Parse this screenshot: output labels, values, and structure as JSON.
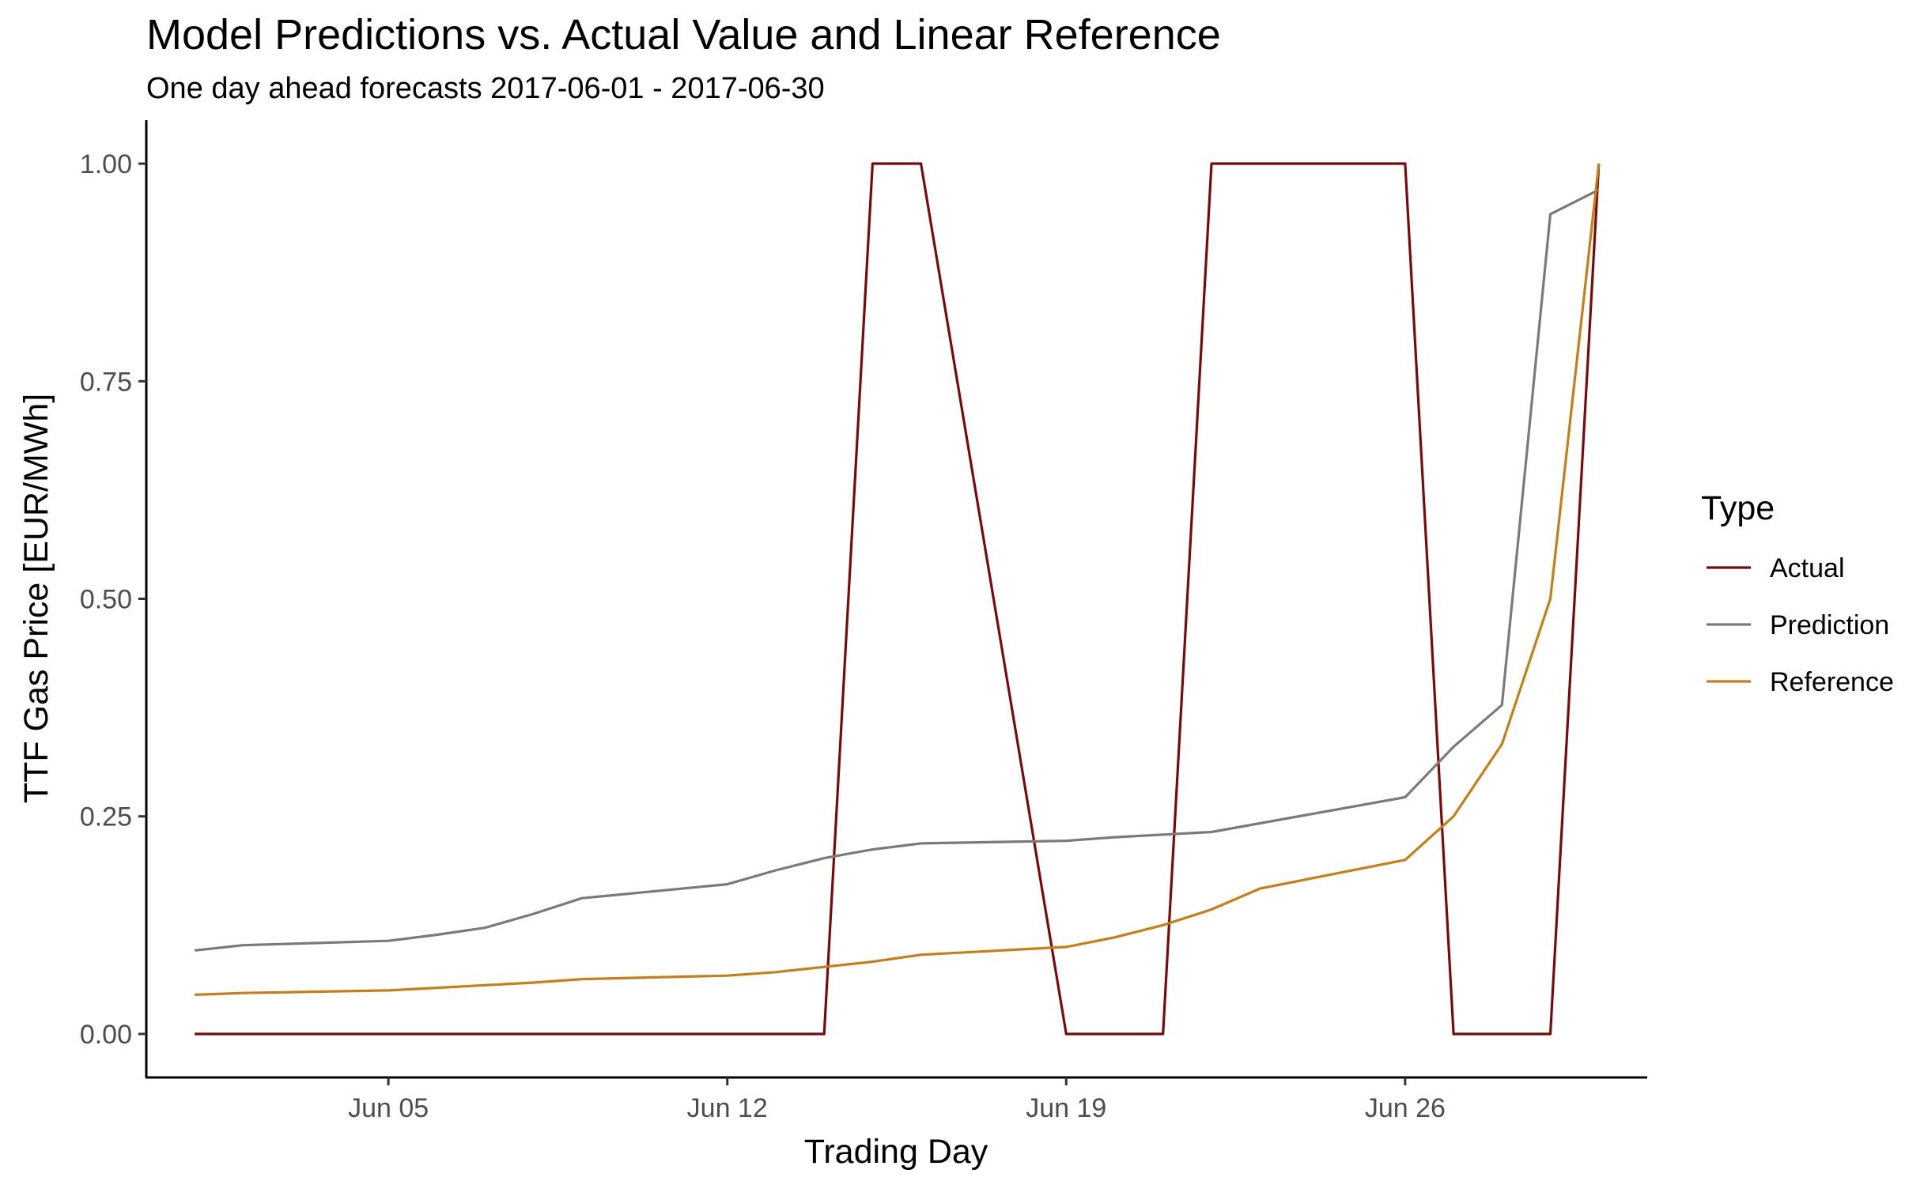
{
  "chart_data": {
    "type": "line",
    "title": "Model Predictions vs. Actual Value and Linear Reference",
    "subtitle": "One day ahead forecasts 2017-06-01 - 2017-06-30",
    "xlabel": "Trading Day",
    "ylabel": "TTF Gas Price [EUR/MWh]",
    "xlim": [
      "2017-05-31",
      "2017-07-01"
    ],
    "ylim": [
      -0.05,
      1.05
    ],
    "x_ticks": [
      "2017-06-05",
      "2017-06-12",
      "2017-06-19",
      "2017-06-26"
    ],
    "x_tick_labels": [
      "Jun 05",
      "Jun 12",
      "Jun 19",
      "Jun 26"
    ],
    "y_ticks": [
      0.0,
      0.25,
      0.5,
      0.75,
      1.0
    ],
    "y_tick_labels": [
      "0.00",
      "0.25",
      "0.50",
      "0.75",
      "1.00"
    ],
    "grid": false,
    "legend_title": "Type",
    "legend_position": "right",
    "series": [
      {
        "name": "Actual",
        "color": "#7a0a0a",
        "x": [
          "2017-06-01",
          "2017-06-02",
          "2017-06-05",
          "2017-06-06",
          "2017-06-07",
          "2017-06-08",
          "2017-06-09",
          "2017-06-12",
          "2017-06-13",
          "2017-06-14",
          "2017-06-15",
          "2017-06-16",
          "2017-06-19",
          "2017-06-20",
          "2017-06-21",
          "2017-06-22",
          "2017-06-23",
          "2017-06-26",
          "2017-06-27",
          "2017-06-28",
          "2017-06-29",
          "2017-06-30"
        ],
        "y": [
          0,
          0,
          0,
          0,
          0,
          0,
          0,
          0,
          0,
          0,
          1,
          1,
          0,
          0,
          0,
          1,
          1,
          1,
          0,
          0,
          0,
          1
        ]
      },
      {
        "name": "Prediction",
        "color": "#7a7a7a",
        "x": [
          "2017-06-01",
          "2017-06-02",
          "2017-06-05",
          "2017-06-06",
          "2017-06-07",
          "2017-06-08",
          "2017-06-09",
          "2017-06-12",
          "2017-06-13",
          "2017-06-14",
          "2017-06-15",
          "2017-06-16",
          "2017-06-19",
          "2017-06-20",
          "2017-06-21",
          "2017-06-22",
          "2017-06-23",
          "2017-06-26",
          "2017-06-27",
          "2017-06-28",
          "2017-06-29",
          "2017-06-30"
        ],
        "y": [
          0.096,
          0.102,
          0.107,
          0.114,
          0.122,
          0.138,
          0.156,
          0.172,
          0.188,
          0.202,
          0.212,
          0.219,
          0.222,
          0.226,
          0.229,
          0.232,
          0.242,
          0.272,
          0.33,
          0.378,
          0.942,
          0.97
        ]
      },
      {
        "name": "Reference",
        "color": "#c97e14",
        "x": [
          "2017-06-01",
          "2017-06-02",
          "2017-06-05",
          "2017-06-06",
          "2017-06-07",
          "2017-06-08",
          "2017-06-09",
          "2017-06-12",
          "2017-06-13",
          "2017-06-14",
          "2017-06-15",
          "2017-06-16",
          "2017-06-19",
          "2017-06-20",
          "2017-06-21",
          "2017-06-22",
          "2017-06-23",
          "2017-06-26",
          "2017-06-27",
          "2017-06-28",
          "2017-06-29",
          "2017-06-30"
        ],
        "y": [
          0.045,
          0.047,
          0.05,
          0.053,
          0.056,
          0.059,
          0.063,
          0.067,
          0.071,
          0.077,
          0.083,
          0.091,
          0.1,
          0.111,
          0.125,
          0.143,
          0.167,
          0.2,
          0.25,
          0.333,
          0.5,
          1.0
        ]
      }
    ]
  }
}
